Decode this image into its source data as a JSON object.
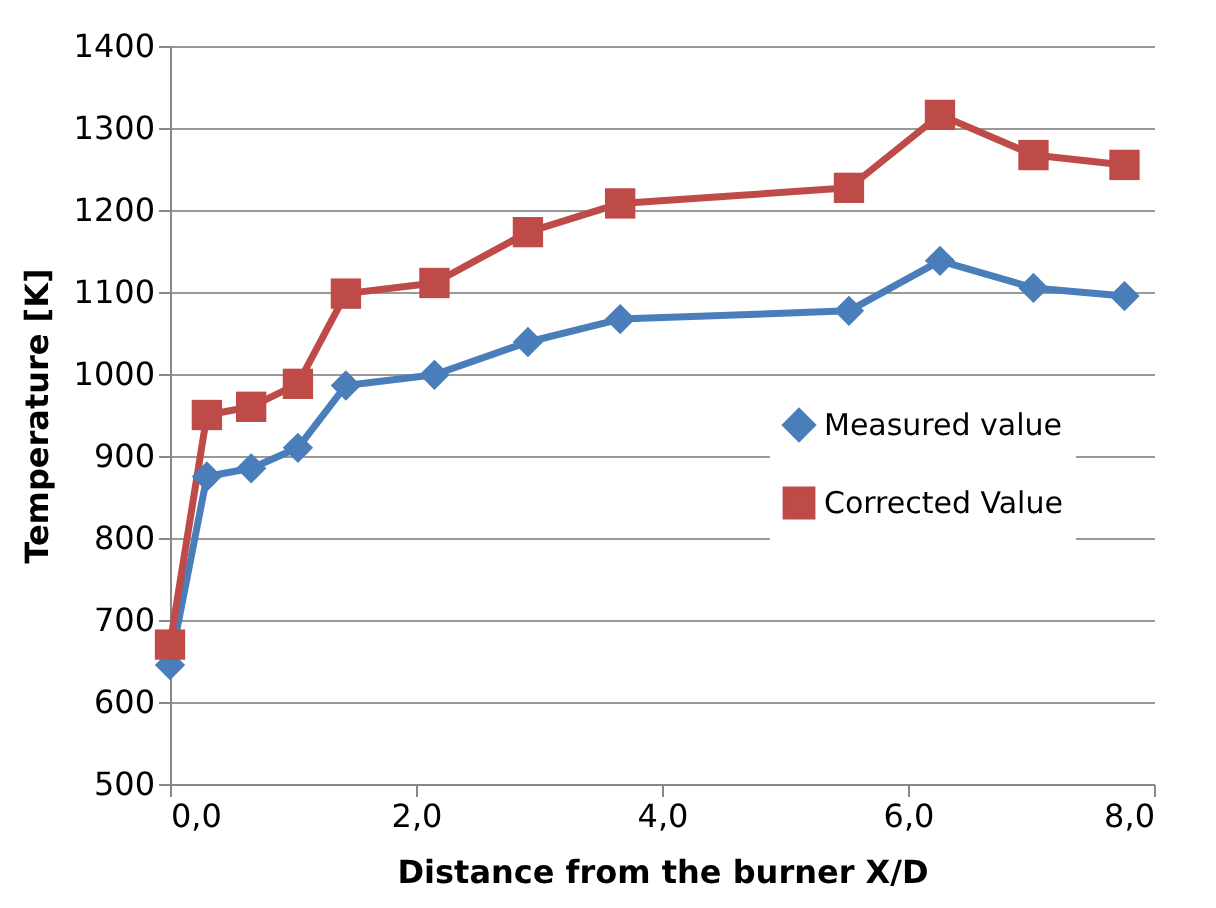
{
  "chart_data": {
    "type": "line",
    "xlabel": "Distance from the burner X/D",
    "ylabel": "Temperature [K]",
    "xlim": [
      0,
      8
    ],
    "xticks": [
      {
        "value": 0,
        "label": "0,0"
      },
      {
        "value": 2,
        "label": "2,0"
      },
      {
        "value": 4,
        "label": "4,0"
      },
      {
        "value": 6,
        "label": "6,0"
      },
      {
        "value": 8,
        "label": "8,0"
      }
    ],
    "ylim": [
      500,
      1400
    ],
    "yticks": [
      500,
      600,
      700,
      800,
      900,
      1000,
      1100,
      1200,
      1300,
      1400
    ],
    "grid": "y",
    "legend": "right",
    "line_style": "solid",
    "series": [
      {
        "name": "Measured value",
        "color": "#4a7ebb",
        "marker": "diamond",
        "x": [
          0,
          0.3,
          0.66,
          1.04,
          1.43,
          2.15,
          2.91,
          3.66,
          5.52,
          6.26,
          7.02,
          7.76
        ],
        "values": [
          645,
          875,
          885,
          910,
          986,
          999,
          1039,
          1067,
          1077,
          1138,
          1105,
          1095
        ]
      },
      {
        "name": "Corrected Value",
        "color": "#be4b48",
        "marker": "square",
        "x": [
          0,
          0.3,
          0.66,
          1.04,
          1.43,
          2.15,
          2.91,
          3.66,
          5.52,
          6.26,
          7.02,
          7.76
        ],
        "values": [
          670,
          950,
          960,
          988,
          1098,
          1111,
          1173,
          1208,
          1227,
          1316,
          1267,
          1255
        ]
      }
    ]
  }
}
